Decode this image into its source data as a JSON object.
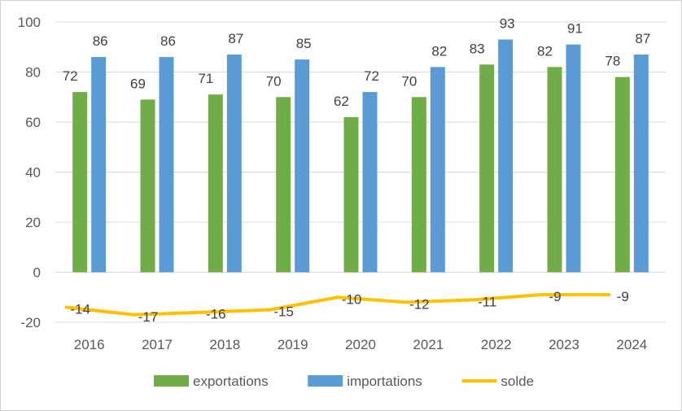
{
  "chart_data": {
    "type": "bar",
    "categories": [
      "2016",
      "2017",
      "2018",
      "2019",
      "2020",
      "2021",
      "2022",
      "2023",
      "2024"
    ],
    "series": [
      {
        "name": "exportations",
        "type": "bar",
        "color": "#70ad47",
        "values": [
          72,
          69,
          71,
          70,
          62,
          70,
          83,
          82,
          78
        ]
      },
      {
        "name": "importations",
        "type": "bar",
        "color": "#5b9bd5",
        "values": [
          86,
          86,
          87,
          85,
          72,
          82,
          93,
          91,
          87
        ]
      },
      {
        "name": "solde",
        "type": "line",
        "color": "#ffc000",
        "values": [
          -14,
          -17,
          -16,
          -15,
          -10,
          -12,
          -11,
          -9,
          -9
        ]
      }
    ],
    "ylim": [
      -20,
      100
    ],
    "yticks": [
      "-20",
      "0",
      "20",
      "40",
      "60",
      "80",
      "100"
    ],
    "grid": true,
    "legend": "bottom",
    "data_labels": {
      "exportations": [
        "72",
        "69",
        "71",
        "70",
        "62",
        "70",
        "83",
        "82",
        "78"
      ],
      "importations": [
        "86",
        "86",
        "87",
        "85",
        "72",
        "82",
        "93",
        "91",
        "87"
      ],
      "solde": [
        "-14",
        "-17",
        "-16",
        "-15",
        "-10",
        "-12",
        "-11",
        "-9",
        "-9"
      ]
    },
    "gridline_color": "#d9d9d9"
  }
}
